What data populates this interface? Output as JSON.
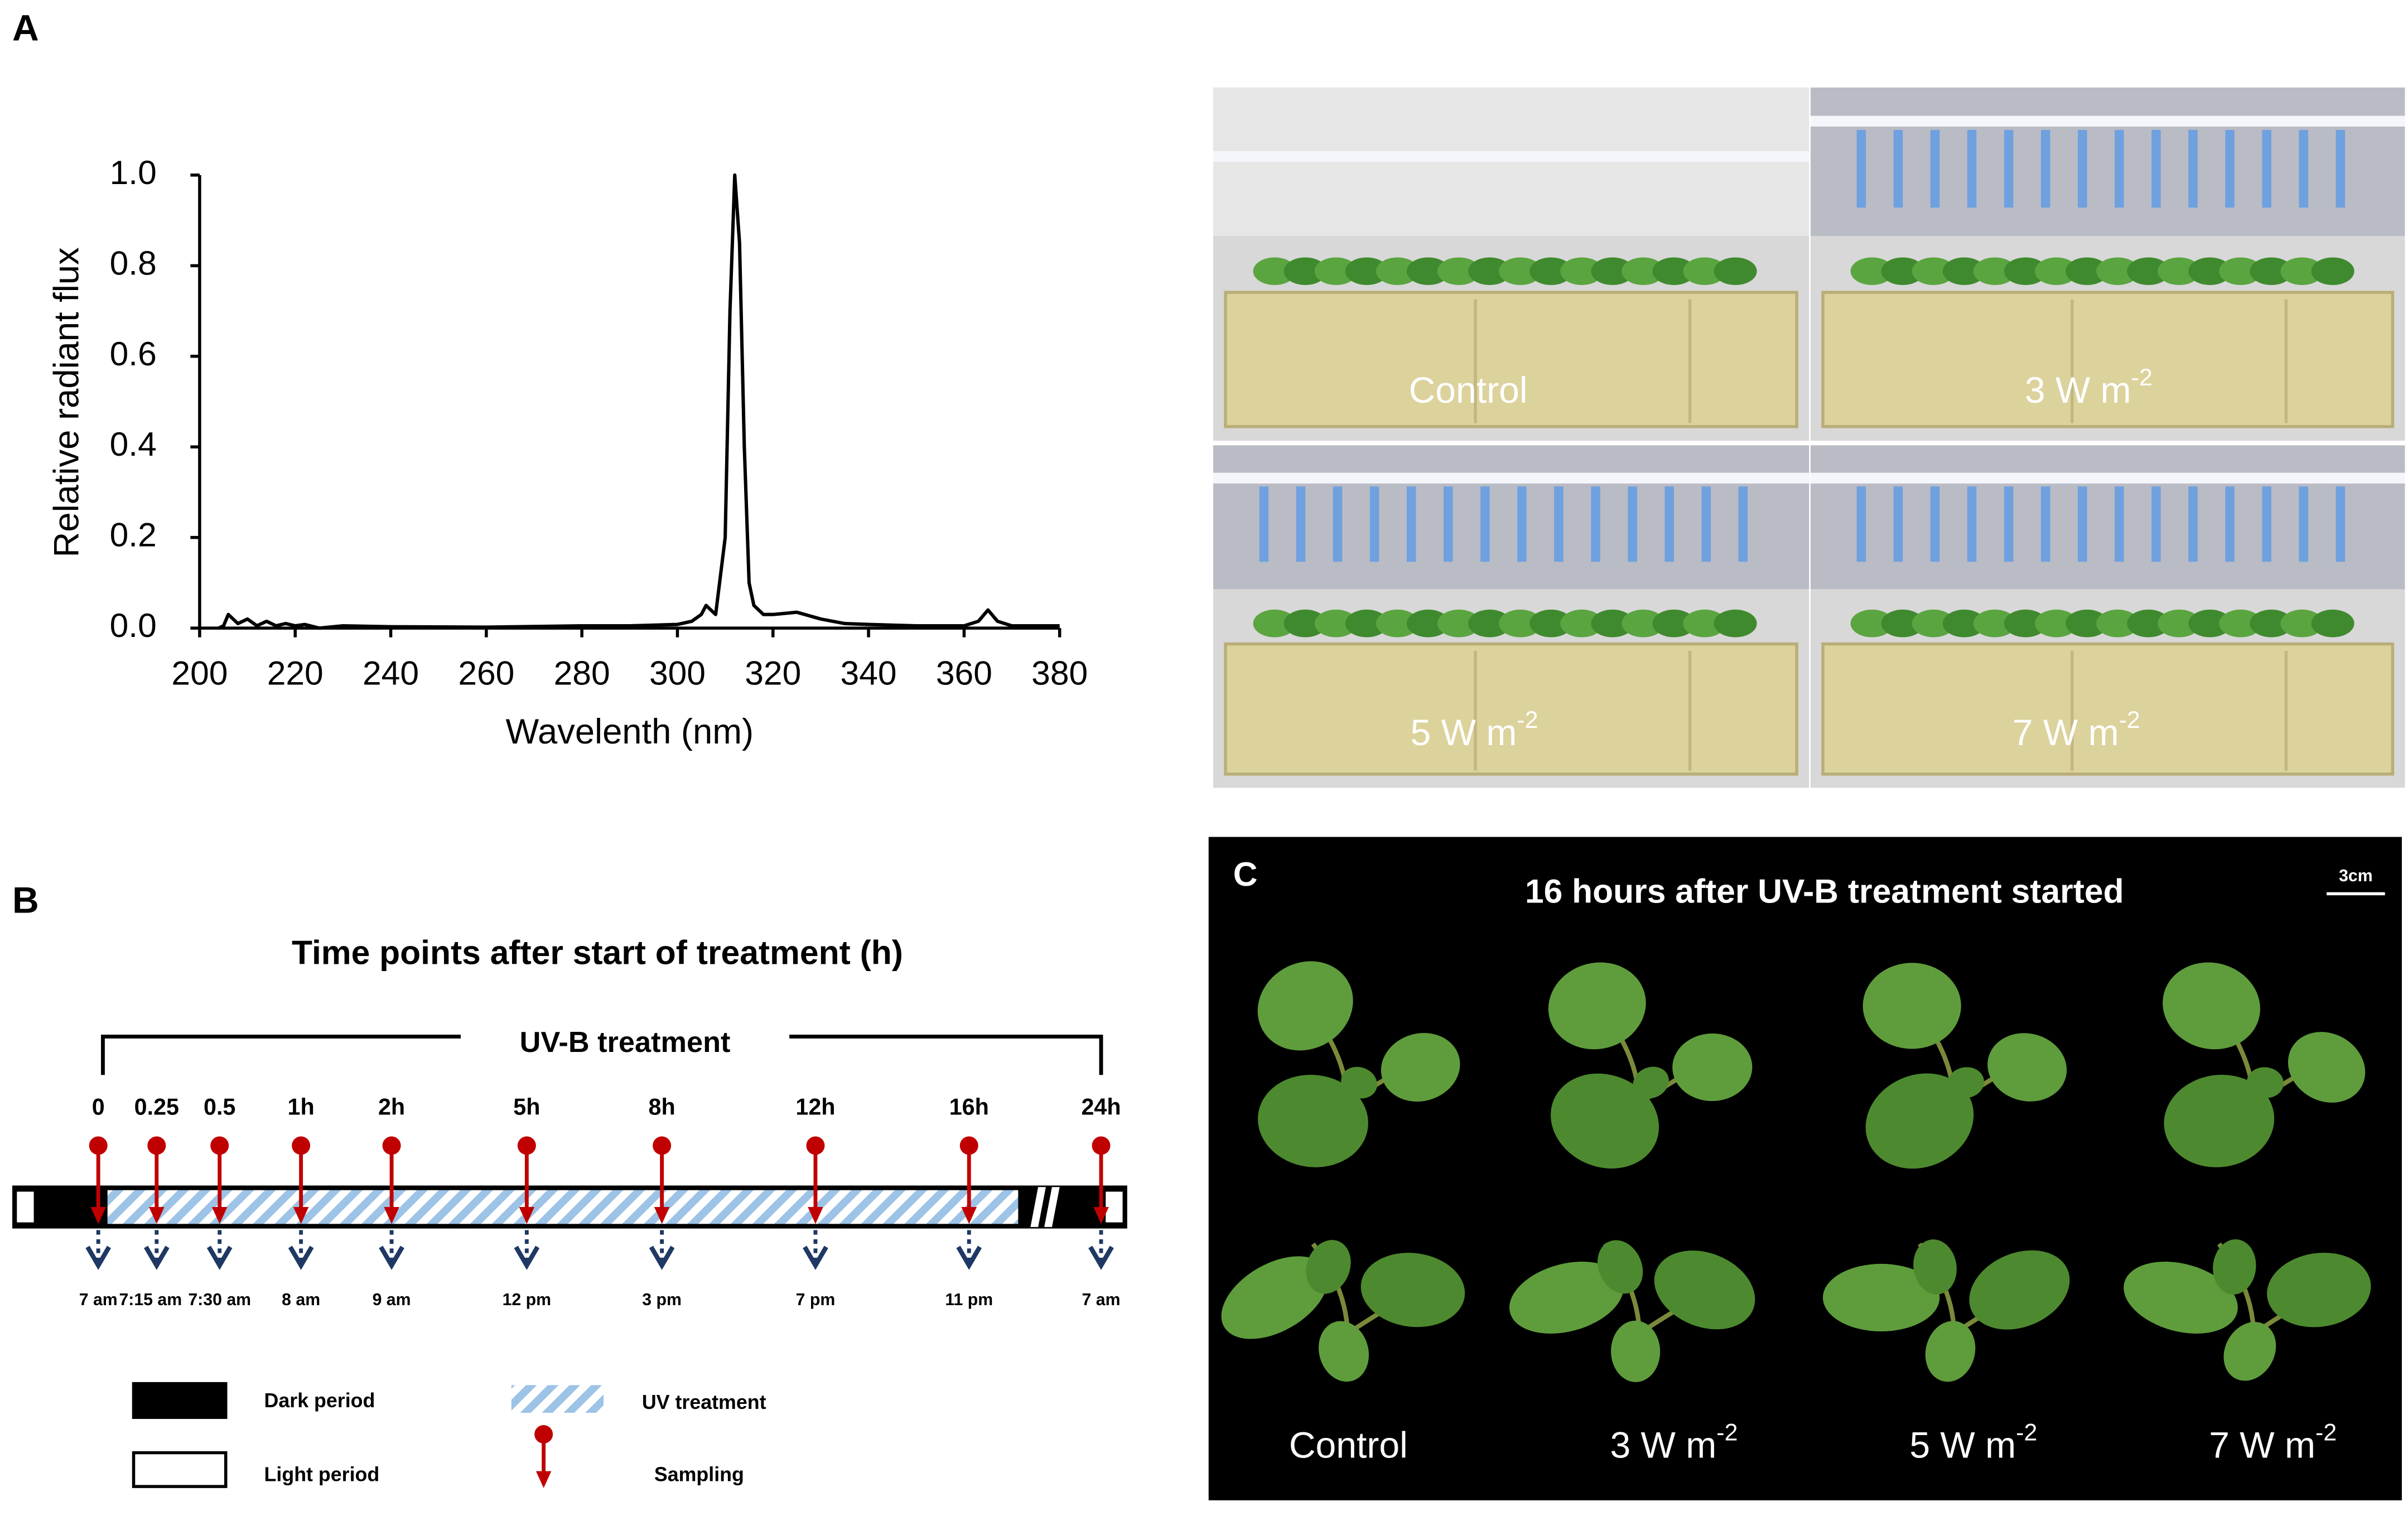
{
  "chart_data": {
    "type": "line",
    "panel_label": "A",
    "y_label": "Relative radiant flux",
    "x_label": "Wavelenth (nm)",
    "color": "#000000",
    "x": [
      204,
      205,
      206,
      208,
      210,
      212,
      214,
      216,
      218,
      220,
      222,
      225,
      230,
      240,
      260,
      280,
      290,
      300,
      303,
      305,
      306,
      308,
      310,
      311,
      312,
      313,
      314,
      315,
      316,
      318,
      320,
      325,
      330,
      335,
      340,
      350,
      360,
      363,
      365,
      367,
      370,
      380
    ],
    "values": [
      0,
      0.005,
      0.03,
      0.01,
      0.02,
      0.005,
      0.015,
      0.005,
      0.01,
      0.005,
      0.008,
      0,
      0.005,
      0.003,
      0.002,
      0.005,
      0.005,
      0.008,
      0.015,
      0.03,
      0.05,
      0.03,
      0.2,
      0.7,
      1.0,
      0.85,
      0.4,
      0.1,
      0.05,
      0.03,
      0.03,
      0.035,
      0.02,
      0.01,
      0.008,
      0.005,
      0.005,
      0.015,
      0.04,
      0.015,
      0.005,
      0.005
    ],
    "xlim": [
      200,
      380
    ],
    "xticks": [
      200,
      220,
      240,
      260,
      280,
      300,
      320,
      340,
      360,
      380
    ],
    "ylim": [
      0,
      1
    ],
    "yticks": [
      {
        "value": 0,
        "label": "0.0"
      },
      0.2,
      0.4,
      0.6,
      0.8,
      {
        "value": 1,
        "label": "1.0"
      }
    ]
  },
  "photos": [
    {
      "text": "Control",
      "sup": null
    },
    {
      "text": "3 W m",
      "sup": "-2"
    },
    {
      "text": "5 W m",
      "sup": "-2"
    },
    {
      "text": "7 W m",
      "sup": "-2"
    }
  ],
  "timeline": {
    "panel_label": "B",
    "title": "Time points after start of treatment (h)",
    "bracket_label": "UV-B treatment",
    "time_labels": [
      "0",
      "0.25",
      "0.5",
      "1h",
      "2h",
      "5h",
      "8h",
      "12h",
      "16h",
      "24h"
    ],
    "clock_labels": [
      "7 am",
      "7:15 am",
      "7:30 am",
      "8 am",
      "9 am",
      "12 pm",
      "3 pm",
      "7 pm",
      "11 pm",
      "7 am"
    ],
    "legend": {
      "dark": "Dark period",
      "light": "Light period",
      "uv": "UV treatment",
      "sampling": "Sampling"
    }
  },
  "plants": {
    "panel_label": "C",
    "title": "16 hours after UV-B treatment started",
    "scale": "3cm",
    "labels": [
      {
        "text": "Control",
        "sup": null
      },
      {
        "text": "3 W m",
        "sup": "-2"
      },
      {
        "text": "5 W m",
        "sup": "-2"
      },
      {
        "text": "7 W m",
        "sup": "-2"
      }
    ]
  }
}
